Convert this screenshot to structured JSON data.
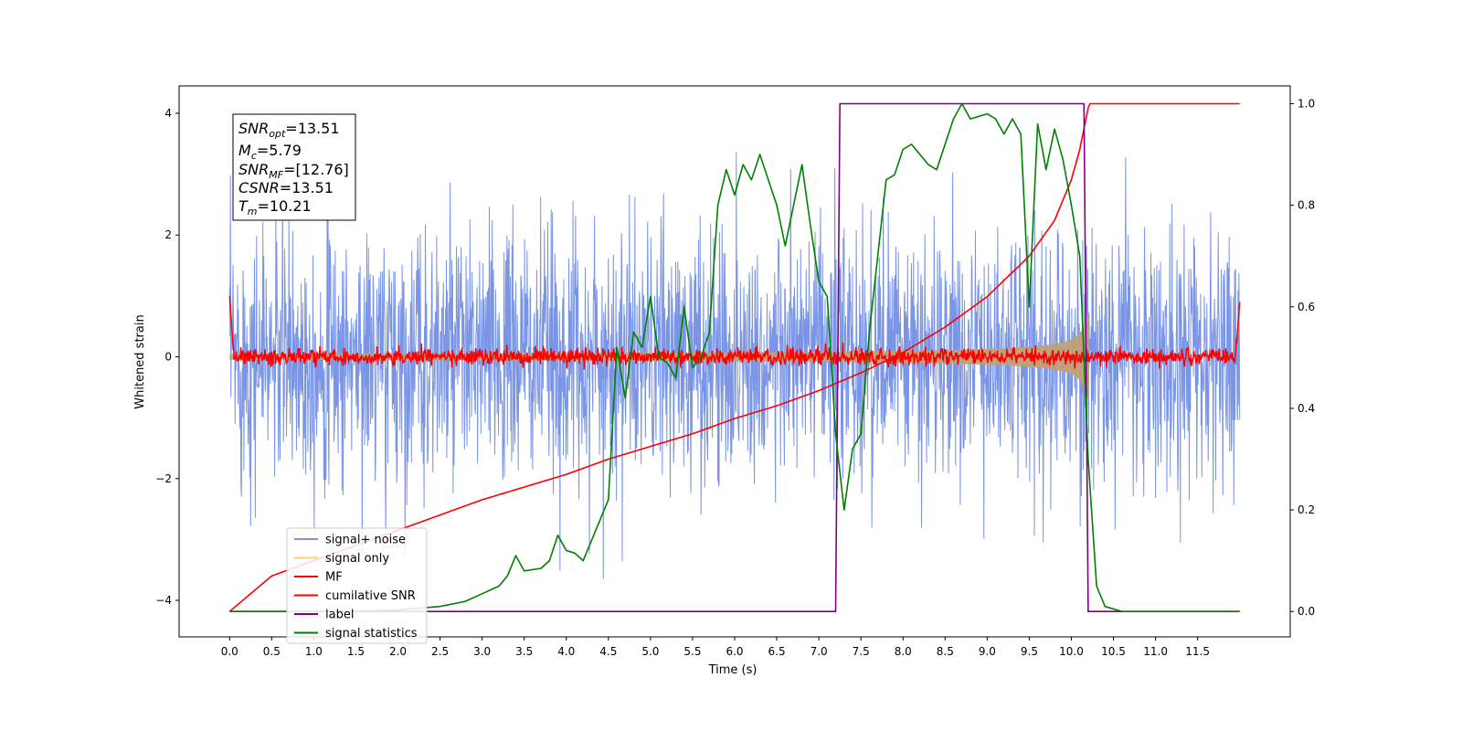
{
  "chart_data": {
    "type": "line",
    "xlabel": "Time (s)",
    "ylabel": "Whitened strain",
    "xlim": [
      -0.6,
      12.6
    ],
    "ylim": [
      -4.6,
      4.45
    ],
    "y2lim": [
      -0.05,
      1.035
    ],
    "x_ticks": [
      "0.0",
      "0.5",
      "1.0",
      "1.5",
      "2.0",
      "2.5",
      "3.0",
      "3.5",
      "4.0",
      "4.5",
      "5.0",
      "5.5",
      "6.0",
      "6.5",
      "7.0",
      "7.5",
      "8.0",
      "8.5",
      "9.0",
      "9.5",
      "10.0",
      "10.5",
      "11.0",
      "11.5"
    ],
    "y_ticks": [
      "4",
      "2",
      "0",
      "−2",
      "−4"
    ],
    "y2_ticks": [
      "1.0",
      "0.8",
      "0.6",
      "0.4",
      "0.2",
      "0.0"
    ],
    "grid": false,
    "legend_position": "lower-left",
    "annotation": {
      "snr_opt": {
        "base": "SNR",
        "sub": "opt",
        "value": "=13.51"
      },
      "mc": {
        "base": "M",
        "sub": "c",
        "value": "=5.79"
      },
      "snr_mf": {
        "base": "SNR",
        "sub": "MF",
        "value": "=[12.76]"
      },
      "csnr": {
        "base": "CSNR",
        "sub": "",
        "value": "=13.51"
      },
      "tm": {
        "base": "T",
        "sub": "m",
        "value": "=10.21"
      }
    },
    "series": [
      {
        "name": "signal+ noise",
        "color": "#7a95e6",
        "axis": "left",
        "description_values": {
          "t_start": 0.0,
          "t_end": 12.0,
          "envelope": [
            -3.3,
            3.7
          ]
        }
      },
      {
        "name": "signal only",
        "color": "#ffcc80",
        "axis": "left",
        "description_values": {
          "t_start": 0.0,
          "t_end": 10.21,
          "amplitude_start": 0.05,
          "amplitude_end": 0.7
        }
      },
      {
        "name": "MF",
        "color": "#ff0000",
        "axis": "left",
        "description_values": {
          "t_start": 0.0,
          "t_end": 12.0,
          "amplitude": 0.12,
          "edge_peaks": [
            1.0,
            0.9
          ]
        }
      },
      {
        "name": "cumilative SNR",
        "color": "#ff0000",
        "axis": "right",
        "x": [
          0.0,
          0.5,
          1.0,
          1.5,
          2.0,
          2.5,
          3.0,
          3.5,
          4.0,
          4.5,
          5.0,
          5.5,
          6.0,
          6.5,
          7.0,
          7.5,
          8.0,
          8.5,
          9.0,
          9.5,
          9.8,
          10.0,
          10.1,
          10.21,
          10.3,
          11.0,
          12.0
        ],
        "values": [
          0.0,
          0.07,
          0.1,
          0.13,
          0.16,
          0.19,
          0.22,
          0.245,
          0.27,
          0.3,
          0.325,
          0.35,
          0.38,
          0.405,
          0.435,
          0.47,
          0.51,
          0.56,
          0.62,
          0.7,
          0.77,
          0.85,
          0.91,
          1.0,
          1.0,
          1.0,
          1.0
        ]
      },
      {
        "name": "label",
        "color": "#800080",
        "axis": "right",
        "x": [
          0.0,
          7.2,
          7.25,
          10.15,
          10.2,
          12.0
        ],
        "values": [
          0.0,
          0.0,
          1.0,
          1.0,
          0.0,
          0.0
        ]
      },
      {
        "name": "signal statistics",
        "color": "#008000",
        "axis": "right",
        "x": [
          0.0,
          0.5,
          1.0,
          1.5,
          2.0,
          2.5,
          2.8,
          3.0,
          3.2,
          3.3,
          3.4,
          3.5,
          3.7,
          3.8,
          3.9,
          4.0,
          4.1,
          4.2,
          4.3,
          4.4,
          4.5,
          4.6,
          4.7,
          4.8,
          4.9,
          5.0,
          5.1,
          5.2,
          5.3,
          5.4,
          5.5,
          5.6,
          5.7,
          5.8,
          5.9,
          6.0,
          6.1,
          6.2,
          6.3,
          6.4,
          6.5,
          6.6,
          6.8,
          6.9,
          7.0,
          7.1,
          7.2,
          7.3,
          7.4,
          7.5,
          7.6,
          7.7,
          7.8,
          7.9,
          8.0,
          8.1,
          8.2,
          8.3,
          8.4,
          8.5,
          8.6,
          8.7,
          8.8,
          9.0,
          9.1,
          9.2,
          9.3,
          9.4,
          9.5,
          9.6,
          9.7,
          9.8,
          9.9,
          10.0,
          10.1,
          10.2,
          10.3,
          10.4,
          10.6,
          11.0,
          12.0
        ],
        "values": [
          0.0,
          0.0,
          0.0,
          0.0,
          0.003,
          0.01,
          0.02,
          0.035,
          0.05,
          0.07,
          0.11,
          0.08,
          0.085,
          0.1,
          0.15,
          0.12,
          0.115,
          0.1,
          0.14,
          0.18,
          0.22,
          0.52,
          0.42,
          0.55,
          0.52,
          0.62,
          0.5,
          0.49,
          0.46,
          0.6,
          0.48,
          0.5,
          0.55,
          0.8,
          0.87,
          0.82,
          0.88,
          0.85,
          0.9,
          0.85,
          0.8,
          0.72,
          0.88,
          0.76,
          0.65,
          0.62,
          0.35,
          0.2,
          0.32,
          0.35,
          0.55,
          0.7,
          0.85,
          0.86,
          0.91,
          0.92,
          0.9,
          0.88,
          0.87,
          0.92,
          0.97,
          1.0,
          0.97,
          0.98,
          0.97,
          0.94,
          0.97,
          0.94,
          0.6,
          0.96,
          0.87,
          0.95,
          0.89,
          0.8,
          0.7,
          0.3,
          0.05,
          0.01,
          0.0,
          0.0,
          0.0
        ]
      }
    ]
  }
}
